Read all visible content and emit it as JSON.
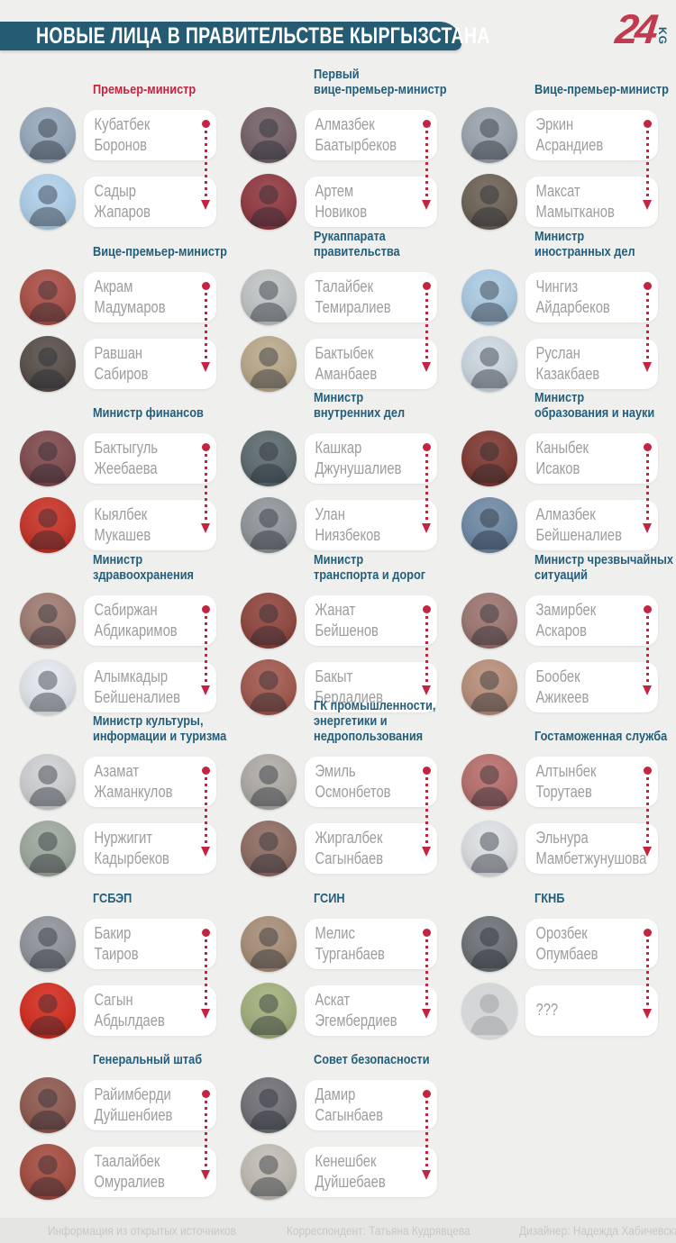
{
  "header": {
    "title": "НОВЫЕ ЛИЦА В ПРАВИТЕЛЬСТВЕ КЫРГЫЗСТАНА",
    "logo_number": "24",
    "logo_suffix": "KG"
  },
  "colors": {
    "banner_teal": "#265b74",
    "title_teal": "#235e7b",
    "accent_red": "#c32440",
    "logo_red": "#c23a50",
    "name_grey": "#9d9d9d",
    "page_bg": "#eff0ee"
  },
  "blocks": [
    {
      "title": "Премьер-министр",
      "accent": true,
      "col": 0,
      "row": 0,
      "people": [
        {
          "name": "Кубатбек\nБоронов",
          "photo_bg": "#93a4b4"
        },
        {
          "name": "Садыр\nЖапаров",
          "photo_bg": "#a9c7df"
        }
      ]
    },
    {
      "title": "Первый\nвице-премьер-министр",
      "accent": false,
      "col": 1,
      "row": 0,
      "people": [
        {
          "name": "Алмазбек\nБаатырбеков",
          "photo_bg": "#75646a"
        },
        {
          "name": "Артем\nНовиков",
          "photo_bg": "#8e3f46"
        }
      ]
    },
    {
      "title": "Вице-премьер-министр",
      "accent": false,
      "col": 2,
      "row": 0,
      "people": [
        {
          "name": "Эркин\nАсрандиев",
          "photo_bg": "#97a0a8"
        },
        {
          "name": "Максат\nМамытканов",
          "photo_bg": "#6e6357"
        }
      ]
    },
    {
      "title": "Вице-премьер-министр",
      "accent": false,
      "col": 0,
      "row": 1,
      "people": [
        {
          "name": "Акрам\nМадумаров",
          "photo_bg": "#a5524a"
        },
        {
          "name": "Равшан\nСабиров",
          "photo_bg": "#5b524e"
        }
      ]
    },
    {
      "title": "Рукаппарата\nправительства",
      "accent": false,
      "col": 1,
      "row": 1,
      "people": [
        {
          "name": "Талайбек\nТемиралиев",
          "photo_bg": "#b9bdbe"
        },
        {
          "name": "Бактыбек\nАманбаев",
          "photo_bg": "#b3a489"
        }
      ]
    },
    {
      "title": "Министр\nиностранных дел",
      "accent": false,
      "col": 2,
      "row": 1,
      "people": [
        {
          "name": "Чингиз\nАйдарбеков",
          "photo_bg": "#a6c3da"
        },
        {
          "name": "Руслан\nКазакбаев",
          "photo_bg": "#c3ced6"
        }
      ]
    },
    {
      "title": "Министр финансов",
      "accent": false,
      "col": 0,
      "row": 2,
      "people": [
        {
          "name": "Бактыгуль\nЖеебаева",
          "photo_bg": "#7e4e50"
        },
        {
          "name": "Кыялбек\nМукашев",
          "photo_bg": "#c0392e"
        }
      ]
    },
    {
      "title": "Министр\nвнутренних дел",
      "accent": false,
      "col": 1,
      "row": 2,
      "people": [
        {
          "name": "Кашкар\nДжунушалиев",
          "photo_bg": "#5e6c70"
        },
        {
          "name": "Улан\nНиязбеков",
          "photo_bg": "#8d9296"
        }
      ]
    },
    {
      "title": "Министр\nобразования и науки",
      "accent": false,
      "col": 2,
      "row": 2,
      "people": [
        {
          "name": "Каныбек\nИсаков",
          "photo_bg": "#7e3f38"
        },
        {
          "name": "Алмазбек\nБейшеналиев",
          "photo_bg": "#6f87a0"
        }
      ]
    },
    {
      "title": "Министр\nздравоохранения",
      "accent": false,
      "col": 0,
      "row": 3,
      "people": [
        {
          "name": "Сабиржан\nАбдикаримов",
          "photo_bg": "#9b7a72"
        },
        {
          "name": "Алымкадыр\nБейшеналиев",
          "photo_bg": "#d9dde1"
        }
      ]
    },
    {
      "title": "Министр\nтранспорта и дорог",
      "accent": false,
      "col": 1,
      "row": 3,
      "people": [
        {
          "name": "Жанат\nБейшенов",
          "photo_bg": "#8c4a43"
        },
        {
          "name": "Бакыт\nБердалиев",
          "photo_bg": "#9c5a50"
        }
      ]
    },
    {
      "title": "Министр чрезвычайных\nситуаций",
      "accent": false,
      "col": 2,
      "row": 3,
      "people": [
        {
          "name": "Замирбек\nАскаров",
          "photo_bg": "#987570"
        },
        {
          "name": "Бообек\nАжикеев",
          "photo_bg": "#b18d79"
        }
      ]
    },
    {
      "title": "Министр культуры,\nинформации и туризма",
      "accent": false,
      "col": 0,
      "row": 4,
      "people": [
        {
          "name": "Азамат\nЖаманкулов",
          "photo_bg": "#c5c7c9"
        },
        {
          "name": "Нуржигит\nКадырбеков",
          "photo_bg": "#9aa399"
        }
      ]
    },
    {
      "title": "ГК промышленности,\nэнергетики и\nнедропользования",
      "accent": false,
      "col": 1,
      "row": 4,
      "people": [
        {
          "name": "Эмиль\nОсмонбетов",
          "photo_bg": "#a9a6a1"
        },
        {
          "name": "Жиргалбек\nСагынбаев",
          "photo_bg": "#8c6d64"
        }
      ]
    },
    {
      "title": "Гостаможенная служба",
      "accent": false,
      "col": 2,
      "row": 4,
      "people": [
        {
          "name": "Алтынбек\nТорутаев",
          "photo_bg": "#b06e6c"
        },
        {
          "name": "Эльнура\nМамбетжунушова",
          "photo_bg": "#d3d6d9"
        }
      ]
    },
    {
      "title": "ГСБЭП",
      "accent": false,
      "col": 0,
      "row": 5,
      "people": [
        {
          "name": "Бакир\nТаиров",
          "photo_bg": "#8d9197"
        },
        {
          "name": "Сагын\nАбдылдаев",
          "photo_bg": "#cc3327"
        }
      ]
    },
    {
      "title": "ГСИН",
      "accent": false,
      "col": 1,
      "row": 5,
      "people": [
        {
          "name": "Мелис\nТурганбаев",
          "photo_bg": "#a38c77"
        },
        {
          "name": "Аскат\nЭгембердиев",
          "photo_bg": "#9dab7c"
        }
      ]
    },
    {
      "title": "ГКНБ",
      "accent": false,
      "col": 2,
      "row": 5,
      "people": [
        {
          "name": "Орозбек\nОпумбаев",
          "photo_bg": "#6e7276"
        },
        {
          "name": "???",
          "photo_bg": "#d5d6d7",
          "placeholder": true
        }
      ]
    },
    {
      "title": "Генеральный штаб",
      "accent": false,
      "col": 0,
      "row": 6,
      "people": [
        {
          "name": "Райимберди\nДуйшенбиев",
          "photo_bg": "#8c5c52"
        },
        {
          "name": "Таалайбек\nОмуралиев",
          "photo_bg": "#a04f44"
        }
      ]
    },
    {
      "title": "Совет безопасности",
      "accent": false,
      "col": 1,
      "row": 6,
      "people": [
        {
          "name": "Дамир\nСагынбаев",
          "photo_bg": "#707075"
        },
        {
          "name": "Кенешбек\nДуйшебаев",
          "photo_bg": "#bab6ae"
        }
      ]
    }
  ],
  "footer": {
    "source": "Информация из открытых источников",
    "correspondent": "Корреспондент: Татьяна Кудрявцева",
    "designer": "Дизайнер: Надежда Хабичевская"
  }
}
